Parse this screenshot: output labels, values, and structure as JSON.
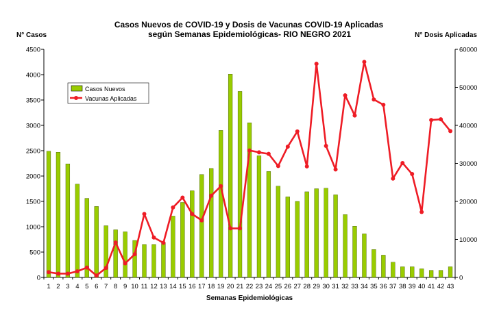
{
  "chart_data": {
    "type": "bar",
    "title": "Casos Nuevos de COVID-19 y Dosis de Vacunas COVID-19 Aplicadas",
    "subtitle": "según Semanas Epidemiológicas- RIO NEGRO  2021",
    "xlabel": "Semanas Epidemiológicas",
    "ylabel_left": "N° Casos",
    "ylabel_right": "N° Dosis Aplicadas",
    "ylim_left": [
      0,
      4500
    ],
    "ylim_right": [
      0,
      60000
    ],
    "yticks_left": [
      "0",
      "500",
      "1000",
      "1500",
      "2000",
      "2500",
      "3000",
      "3500",
      "4000",
      "4500"
    ],
    "yticks_right": [
      "0",
      "10000",
      "20000",
      "30000",
      "40000",
      "50000",
      "60000"
    ],
    "categories": [
      "1",
      "2",
      "3",
      "4",
      "5",
      "6",
      "7",
      "8",
      "9",
      "10",
      "11",
      "12",
      "13",
      "14",
      "15",
      "16",
      "17",
      "18",
      "19",
      "20",
      "21",
      "22",
      "23",
      "24",
      "25",
      "26",
      "27",
      "28",
      "29",
      "30",
      "31",
      "32",
      "33",
      "34",
      "35",
      "36",
      "37",
      "38",
      "39",
      "40",
      "41",
      "42",
      "43"
    ],
    "grid": false,
    "legend_position": "upper-left",
    "series": [
      {
        "name": "Casos Nuevos",
        "type": "bar",
        "axis": "left",
        "color": "#99cc00",
        "values": [
          2490,
          2470,
          2240,
          1840,
          1560,
          1400,
          1020,
          940,
          900,
          730,
          650,
          650,
          690,
          1210,
          1480,
          1710,
          2030,
          2150,
          2900,
          4010,
          3670,
          3050,
          2400,
          2090,
          1800,
          1590,
          1500,
          1690,
          1750,
          1760,
          1630,
          1240,
          1010,
          860,
          550,
          440,
          300,
          210,
          210,
          170,
          140,
          140,
          210
        ]
      },
      {
        "name": "Vacunas  Aplicadas",
        "type": "line",
        "axis": "right",
        "color": "#ee1c25",
        "values": [
          1400,
          1000,
          1000,
          1600,
          2600,
          500,
          2500,
          9200,
          3700,
          6100,
          16700,
          10500,
          9100,
          18400,
          21000,
          16700,
          15000,
          21500,
          24000,
          12900,
          12900,
          33400,
          32900,
          32500,
          29300,
          34400,
          38400,
          29200,
          56200,
          34600,
          28400,
          47900,
          42600,
          56700,
          46800,
          45400,
          26000,
          30100,
          27200,
          17200,
          41400,
          41600,
          38500
        ]
      }
    ]
  }
}
